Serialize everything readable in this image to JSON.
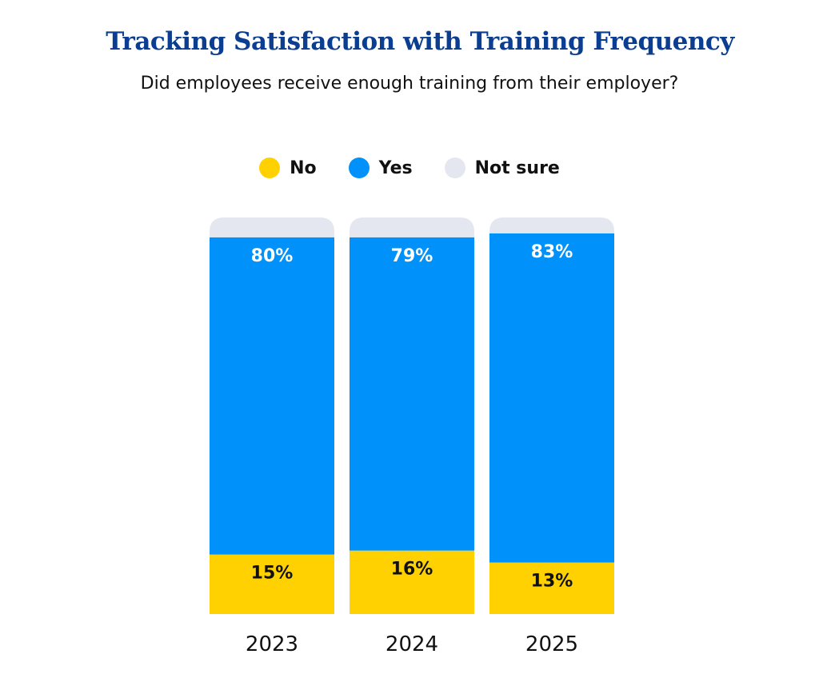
{
  "title": "Tracking Satisfaction with Training Frequency",
  "subtitle": "Did employees receive enough training from their employer?",
  "chart_data": {
    "type": "bar",
    "stacked": true,
    "categories": [
      "2023",
      "2024",
      "2025"
    ],
    "series": [
      {
        "name": "No",
        "color": "#ffd100",
        "values": [
          15,
          16,
          13
        ],
        "labels": [
          "15%",
          "16%",
          "13%"
        ]
      },
      {
        "name": "Yes",
        "color": "#0091fa",
        "values": [
          80,
          79,
          83
        ],
        "labels": [
          "80%",
          "79%",
          "83%"
        ]
      },
      {
        "name": "Not sure",
        "color": "#e4e7f0",
        "values": [
          5,
          5,
          4
        ]
      }
    ],
    "ylim": [
      0,
      100
    ],
    "legend_position": "top-center",
    "grid": false
  }
}
